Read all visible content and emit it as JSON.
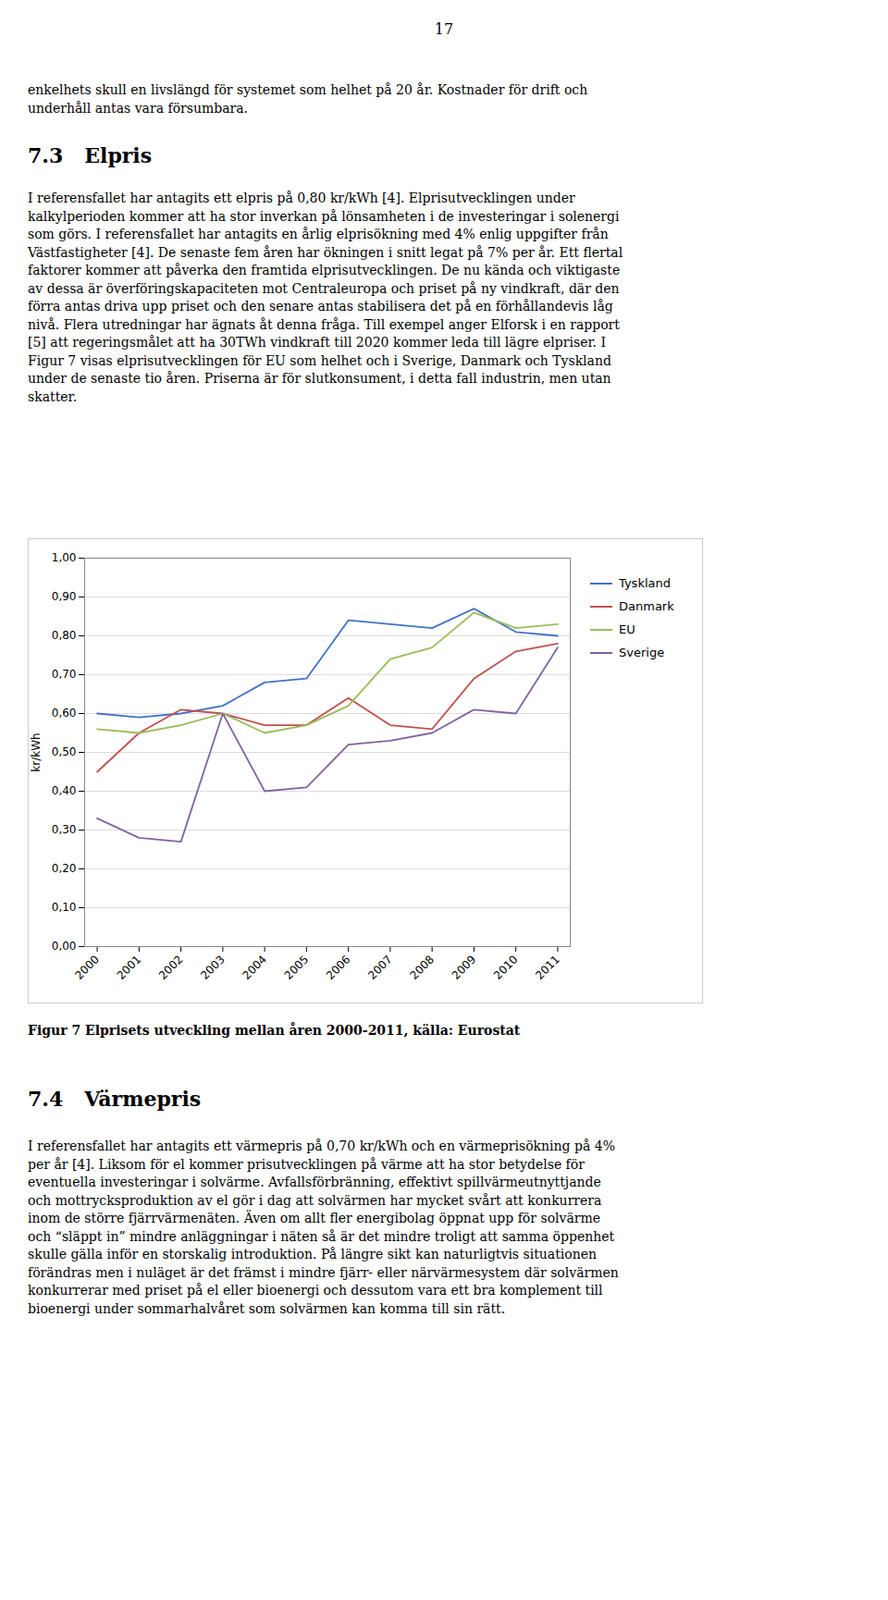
{
  "page_number": "17",
  "intro_lines": [
    "enkelhets skull en livslängd för systemet som helhet på 20 år. Kostnader för drift och",
    "underhåll antas vara försumbara."
  ],
  "section_73_title": "7.3   Elpris",
  "section_73_lines": [
    "I referensfallet har antagits ett elpris på 0,80 kr/kWh [4]. Elprisutvecklingen under",
    "kalkylperioden kommer att ha stor inverkan på lönsamheten i de investeringar i solenergi",
    "som görs. I referensfallet har antagits en årlig elprisökning med 4% enlig uppgifter från",
    "Västfastigheter [4]. De senaste fem åren har ökningen i snitt legat på 7% per år. Ett flertal",
    "faktorer kommer att påverka den framtida elprisutvecklingen. De nu kända och viktigaste",
    "av dessa är överföringskapaciteten mot Centraleuropa och priset på ny vindkraft, där den",
    "förra antas driva upp priset och den senare antas stabilisera det på en förhållandevis låg",
    "nivå. Flera utredningar har ägnats åt denna fråga. Till exempel anger Elforsk i en rapport",
    "[5] att regeringsmålet att ha 30TWh vindkraft till 2020 kommer leda till lägre elpriser. I",
    "Figur 7 visas elprisutvecklingen för EU som helhet och i Sverige, Danmark och Tyskland",
    "under de senaste tio åren. Priserna är för slutkonsument, i detta fall industrin, men utan",
    "skatter."
  ],
  "section_74_title": "7.4   Värmepris",
  "section_74_lines": [
    "I referensfallet har antagits ett värmepris på 0,70 kr/kWh och en värmeprisökning på 4%",
    "per år [4]. Liksom för el kommer prisutvecklingen på värme att ha stor betydelse för",
    "eventuella investeringar i solvärme. Avfallsförbränning, effektivt spillvärmeutnyttjande",
    "och mottrycksproduktion av el gör i dag att solvärmen har mycket svårt att konkurrera",
    "inom de större fjärrvärmenäten. Även om allt fler energibolag öppnat upp för solvärme",
    "och “släppt in” mindre anläggningar i näten så är det mindre troligt att samma öppenhet",
    "skulle gälla inför en storskalig introduktion. På längre sikt kan naturligtvis situationen",
    "förändras men i nuläget är det främst i mindre fjärr- eller närvärmesystem där solvärmen",
    "konkurrerar med priset på el eller bioenergi och dessutom vara ett bra komplement till",
    "bioenergi under sommarhalvåret som solvärmen kan komma till sin rätt."
  ],
  "chart_data": {
    "type": "line",
    "caption": "Figur 7 Elprisets utveckling mellan åren 2000-2011, källa: Eurostat",
    "ylabel": "kr/kWh",
    "x": [
      2000,
      2001,
      2002,
      2003,
      2004,
      2005,
      2006,
      2007,
      2008,
      2009,
      2010,
      2011
    ],
    "series": [
      {
        "name": "Tyskland",
        "color": "#4472C4",
        "values": [
          0.6,
          0.59,
          0.6,
          0.62,
          0.68,
          0.69,
          0.84,
          0.83,
          0.82,
          0.87,
          0.81,
          0.8
        ]
      },
      {
        "name": "Danmark",
        "color": "#C0504D",
        "values": [
          0.45,
          0.55,
          0.61,
          0.6,
          0.57,
          0.57,
          0.64,
          0.57,
          0.56,
          0.69,
          0.76,
          0.78
        ]
      },
      {
        "name": "EU",
        "color": "#9BBB59",
        "values": [
          0.56,
          0.55,
          0.57,
          0.6,
          0.55,
          0.57,
          0.62,
          0.74,
          0.77,
          0.86,
          0.82,
          0.83
        ]
      },
      {
        "name": "Sverige",
        "color": "#8064A2",
        "values": [
          0.33,
          0.28,
          0.27,
          0.6,
          0.4,
          0.41,
          0.52,
          0.53,
          0.55,
          0.61,
          0.6,
          0.77
        ]
      }
    ],
    "xlim": [
      1999.7,
      2011.3
    ],
    "xticks": [
      2000,
      2001,
      2002,
      2003,
      2004,
      2005,
      2006,
      2007,
      2008,
      2009,
      2010,
      2011
    ],
    "ylim": [
      0,
      1
    ],
    "yticks": [
      {
        "value": 0,
        "label": "0,00"
      },
      {
        "value": 0.1,
        "label": "0,10"
      },
      {
        "value": 0.2,
        "label": "0,20"
      },
      {
        "value": 0.3,
        "label": "0,30"
      },
      {
        "value": 0.4,
        "label": "0,40"
      },
      {
        "value": 0.5,
        "label": "0,50"
      },
      {
        "value": 0.6,
        "label": "0,60"
      },
      {
        "value": 0.7,
        "label": "0,70"
      },
      {
        "value": 0.8,
        "label": "0,80"
      },
      {
        "value": 0.9,
        "label": "0,90"
      },
      {
        "value": 1,
        "label": "1,00"
      }
    ],
    "grid": "y",
    "legend": "right"
  }
}
